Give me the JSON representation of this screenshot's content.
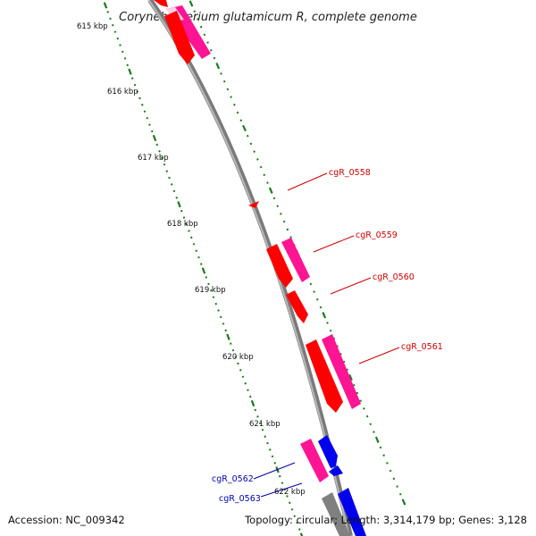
{
  "title": "Corynebacterium glutamicum R, complete genome",
  "accession": "Accession: NC_009342",
  "topology": "Topology: circular; Length: 3,314,179 bp; Genes: 3,128",
  "kbp_labels": [
    "615 kbp",
    "616 kbp",
    "617 kbp",
    "618 kbp",
    "619 kbp",
    "620 kbp",
    "621 kbp",
    "622 kbp"
  ],
  "gene_labels": [
    {
      "name": "cgR_0558",
      "strand": "forward"
    },
    {
      "name": "cgR_0559",
      "strand": "forward"
    },
    {
      "name": "cgR_0560",
      "strand": "forward"
    },
    {
      "name": "cgR_0561",
      "strand": "forward"
    },
    {
      "name": "cgR_0562",
      "strand": "reverse"
    },
    {
      "name": "cgR_0563",
      "strand": "reverse"
    }
  ],
  "colors": {
    "backbone": "#8a8a8a",
    "tick": "#1a7a1a",
    "gene_forward": "#ff0000",
    "gene_forward_alt": "#ff1493",
    "gene_reverse": "#0000ee",
    "label_forward": "#cc0000",
    "label_reverse": "#0000aa"
  }
}
